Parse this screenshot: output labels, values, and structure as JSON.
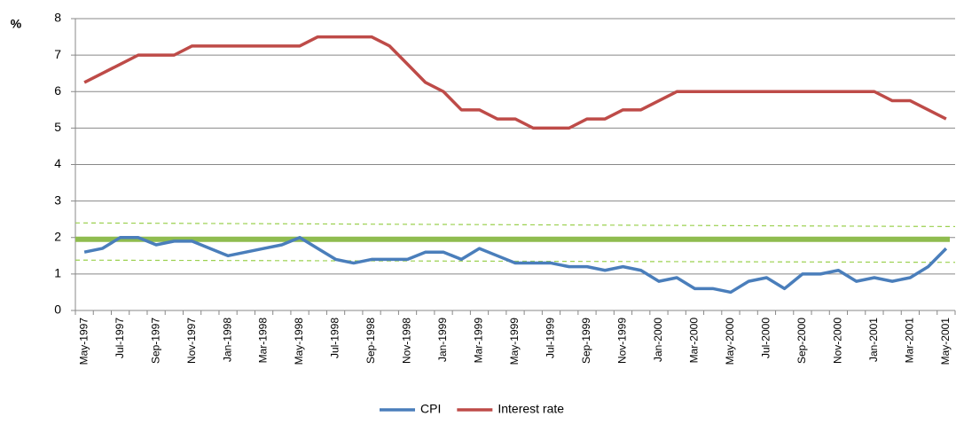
{
  "chart_data": {
    "type": "line",
    "y_label": "%",
    "categories": [
      "May-1997",
      null,
      "Jul-1997",
      null,
      "Sep-1997",
      null,
      "Nov-1997",
      null,
      "Jan-1998",
      null,
      "Mar-1998",
      null,
      "May-1998",
      null,
      "Jul-1998",
      null,
      "Sep-1998",
      null,
      "Nov-1998",
      null,
      "Jan-1999",
      null,
      "Mar-1999",
      null,
      "May-1999",
      null,
      "Jul-1999",
      null,
      "Sep-1999",
      null,
      "Nov-1999",
      null,
      "Jan-2000",
      null,
      "Mar-2000",
      null,
      "May-2000",
      null,
      "Jul-2000",
      null,
      "Sep-2000",
      null,
      "Nov-2000",
      null,
      "Jan-2001",
      null,
      "Mar-2001",
      null,
      "May-2001"
    ],
    "series": [
      {
        "name": "CPI",
        "color": "#4a7ebb",
        "values": [
          1.6,
          1.7,
          2.0,
          2.0,
          1.8,
          1.9,
          1.9,
          1.7,
          1.5,
          1.6,
          1.7,
          1.8,
          2.0,
          1.7,
          1.4,
          1.3,
          1.4,
          1.4,
          1.4,
          1.6,
          1.6,
          1.4,
          1.7,
          1.5,
          1.3,
          1.3,
          1.3,
          1.2,
          1.2,
          1.1,
          1.2,
          1.1,
          0.8,
          0.9,
          0.6,
          0.6,
          0.5,
          0.8,
          0.9,
          0.6,
          1.0,
          1.0,
          1.1,
          0.8,
          0.9,
          0.8,
          0.9,
          1.2,
          1.7
        ]
      },
      {
        "name": "Interest rate",
        "color": "#be4b48",
        "values": [
          6.25,
          6.5,
          6.75,
          7.0,
          7.0,
          7.0,
          7.25,
          7.25,
          7.25,
          7.25,
          7.25,
          7.25,
          7.25,
          7.5,
          7.5,
          7.5,
          7.5,
          7.25,
          6.75,
          6.25,
          6.0,
          5.5,
          5.5,
          5.25,
          5.25,
          5.0,
          5.0,
          5.0,
          5.25,
          5.25,
          5.5,
          5.5,
          5.75,
          6.0,
          6.0,
          6.0,
          6.0,
          6.0,
          6.0,
          6.0,
          6.0,
          6.0,
          6.0,
          6.0,
          6.0,
          5.75,
          5.75,
          5.5,
          5.25
        ]
      }
    ],
    "target": {
      "value": 1.95,
      "color": "#8fbc4f"
    },
    "band": {
      "upper": [
        2.4,
        2.3
      ],
      "lower": [
        1.38,
        1.32
      ],
      "color": "#9bd04f"
    },
    "ylim": [
      0,
      8
    ],
    "yticks": [
      0,
      1,
      2,
      3,
      4,
      5,
      6,
      7,
      8
    ],
    "grid": true,
    "legend": "bottom"
  }
}
